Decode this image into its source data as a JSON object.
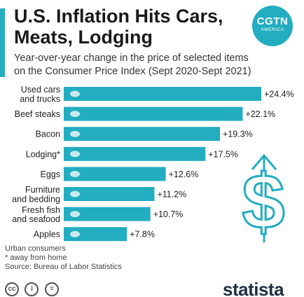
{
  "header": {
    "title": "U.S. Inflation Hits Cars,\nMeats, Lodging",
    "subtitle": "Year-over-year change in the price of selected items\non the Consumer Price Index (Sept 2020-Sept 2021)"
  },
  "logo": {
    "line1": "CGTN",
    "line2": "AMERICA"
  },
  "colors": {
    "accent": "#22adc0",
    "bar": "#22adc0",
    "decoration": "#22adc0",
    "text": "#222222"
  },
  "chart_data": {
    "type": "bar",
    "orientation": "horizontal",
    "categories": [
      [
        "Used cars",
        "and trucks"
      ],
      [
        "Beef steaks"
      ],
      [
        "Bacon"
      ],
      [
        "Lodging*"
      ],
      [
        "Eggs"
      ],
      [
        "Furniture",
        "and bedding"
      ],
      [
        "Fresh fish",
        "and seafood"
      ],
      [
        "Apples"
      ]
    ],
    "values": [
      24.4,
      22.1,
      19.3,
      17.5,
      12.6,
      11.2,
      10.7,
      7.8
    ],
    "value_labels": [
      "+24.4%",
      "+22.1%",
      "+19.3%",
      "+17.5%",
      "+12.6%",
      "+11.2%",
      "+10.7%",
      "+7.8%"
    ],
    "icons": [
      "car-icon",
      "steak-icon",
      "bacon-icon",
      "bed-icon",
      "egg-icon",
      "chair-icon",
      "fish-icon",
      "apple-icon"
    ],
    "unit": "%",
    "xlim": [
      0,
      24.4
    ],
    "grid": false,
    "legend": "none"
  },
  "notes": {
    "line1": "Urban consumers",
    "line2": "* away from home",
    "source": "Source: Bureau of Labor Statistics"
  },
  "footer": {
    "license_icons": [
      "cc-icon",
      "by-icon",
      "nd-icon"
    ],
    "license_glyphs": [
      "cc",
      "i",
      "="
    ],
    "brand": "statista"
  }
}
